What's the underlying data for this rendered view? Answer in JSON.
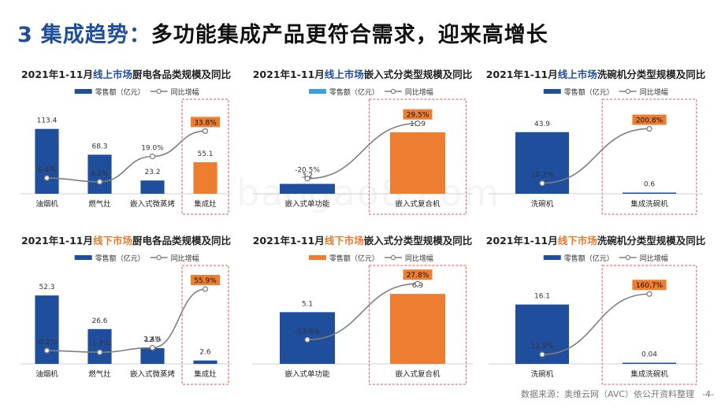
{
  "page_title": {
    "number": "3",
    "accent": "集成趋势：",
    "rest": "多功能集成产品更符合需求，迎来高增长"
  },
  "watermark": "baogao8.com",
  "footer": {
    "source": "数据来源：奥维云网（AVC）依公开资料整理",
    "page": "-4-"
  },
  "colors": {
    "blue": "#1f4e9c",
    "orange": "#ed7d31",
    "line": "#7f7f7f",
    "highlight_box": "#e05050"
  },
  "chart_data": [
    {
      "id": "online-kitchen",
      "type": "bar",
      "title": {
        "pre": "2021年1-11月",
        "highlight": "线上市场",
        "post": "厨电各品类规模及同比"
      },
      "highlight_color": "blue",
      "legend": {
        "bar": "零售额（亿元）",
        "line": "同比增幅"
      },
      "legend_bar_color": "blue",
      "categories": [
        "油烟机",
        "燃气灶",
        "嵌入式微蒸烤",
        "集成灶"
      ],
      "values": [
        113.4,
        68.3,
        23.2,
        55.1
      ],
      "value_labels": [
        "113.4",
        "68.3",
        "23.2",
        "55.1"
      ],
      "bar_colors": [
        "blue",
        "blue",
        "blue",
        "orange"
      ],
      "growth": [
        6.4,
        4.2,
        19.0,
        33.8
      ],
      "growth_labels": [
        "6.4%",
        "4.2%",
        "19.0%",
        "33.8%"
      ],
      "growth_range": [
        0,
        45
      ],
      "ylim": [
        0,
        135
      ],
      "highlight_index": 3
    },
    {
      "id": "online-embedded",
      "type": "bar",
      "title": {
        "pre": "2021年1-11月",
        "highlight": "线上市场",
        "post": "嵌入式分类型规模及同比"
      },
      "highlight_color": "blue",
      "legend": {
        "bar": "零售额（亿元）",
        "line": "同比增幅"
      },
      "legend_bar_color": "lightblue",
      "categories": [
        "嵌入式单功能",
        "嵌入式复合机"
      ],
      "values": [
        3.2,
        19.9
      ],
      "value_labels": [
        "3.2",
        "19.9"
      ],
      "bar_colors": [
        "blue",
        "orange"
      ],
      "growth": [
        -20.5,
        29.5
      ],
      "growth_labels": [
        "-20.5%",
        "29.5%"
      ],
      "growth_range": [
        -30,
        40
      ],
      "ylim": [
        0,
        25
      ],
      "highlight_index": 1
    },
    {
      "id": "online-dishwasher",
      "type": "bar",
      "title": {
        "pre": "2021年1-11月",
        "highlight": "线上市场",
        "post": "洗碗机分类型规模及同比"
      },
      "highlight_color": "blue",
      "legend": {
        "bar": "零售额（亿元）",
        "line": "同比增幅"
      },
      "legend_bar_color": "blue",
      "categories": [
        "洗碗机",
        "集成洗碗机"
      ],
      "values": [
        43.9,
        0.6
      ],
      "value_labels": [
        "43.9",
        "0.6"
      ],
      "bar_colors": [
        "blue",
        "blue"
      ],
      "growth": [
        10.2,
        200.8
      ],
      "growth_labels": [
        "10.2%",
        "200.8%"
      ],
      "growth_range": [
        -10,
        260
      ],
      "ylim": [
        0,
        55
      ],
      "highlight_index": 1
    },
    {
      "id": "offline-kitchen",
      "type": "bar",
      "title": {
        "pre": "2021年1-11月",
        "highlight": "线下市场",
        "post": "厨电各品类规模及同比"
      },
      "highlight_color": "orange",
      "legend": {
        "bar": "零售额（亿元）",
        "line": "同比增幅"
      },
      "legend_bar_color": "blue",
      "categories": [
        "油烟机",
        "燃气灶",
        "嵌入式微蒸烤",
        "集成灶"
      ],
      "values": [
        52.3,
        26.6,
        12.0,
        2.6
      ],
      "value_labels": [
        "52.3",
        "26.6",
        "12.0",
        "2.6"
      ],
      "bar_colors": [
        "blue",
        "blue",
        "blue",
        "blue"
      ],
      "growth": [
        -0.2,
        -1.7,
        2.4,
        55.9
      ],
      "growth_labels": [
        "-0.2%",
        "-1.7%",
        "2.4%",
        "55.9%"
      ],
      "growth_range": [
        -8,
        66
      ],
      "ylim": [
        0,
        62
      ],
      "highlight_index": 3
    },
    {
      "id": "offline-embedded",
      "type": "bar",
      "title": {
        "pre": "2021年1-11月",
        "highlight": "线下市场",
        "post": "嵌入式分类型规模及同比"
      },
      "highlight_color": "orange",
      "legend": {
        "bar": "零售额（亿元）",
        "line": "同比增幅"
      },
      "legend_bar_color": "orange",
      "categories": [
        "嵌入式单功能",
        "嵌入式复合机"
      ],
      "values": [
        5.1,
        6.9
      ],
      "value_labels": [
        "5.1",
        "6.9"
      ],
      "bar_colors": [
        "blue",
        "orange"
      ],
      "growth": [
        -13.6,
        27.8
      ],
      "growth_labels": [
        "-13.6%",
        "27.8%"
      ],
      "growth_range": [
        -28,
        32
      ],
      "ylim": [
        0,
        8
      ],
      "highlight_index": 1
    },
    {
      "id": "offline-dishwasher",
      "type": "bar",
      "title": {
        "pre": "2021年1-11月",
        "highlight": "线下市场",
        "post": "洗碗机分类型规模及同比"
      },
      "highlight_color": "orange",
      "legend": {
        "bar": "零售额（亿元）",
        "line": "同比增幅"
      },
      "legend_bar_color": "blue",
      "categories": [
        "洗碗机",
        "集成洗碗机"
      ],
      "values": [
        16.1,
        0.04
      ],
      "value_labels": [
        "16.1",
        "0.04"
      ],
      "bar_colors": [
        "blue",
        "blue"
      ],
      "growth": [
        11.5,
        160.7
      ],
      "growth_labels": [
        "11.5%",
        "160.7%"
      ],
      "growth_range": [
        0,
        200
      ],
      "ylim": [
        0,
        22
      ],
      "highlight_index": 1
    }
  ]
}
